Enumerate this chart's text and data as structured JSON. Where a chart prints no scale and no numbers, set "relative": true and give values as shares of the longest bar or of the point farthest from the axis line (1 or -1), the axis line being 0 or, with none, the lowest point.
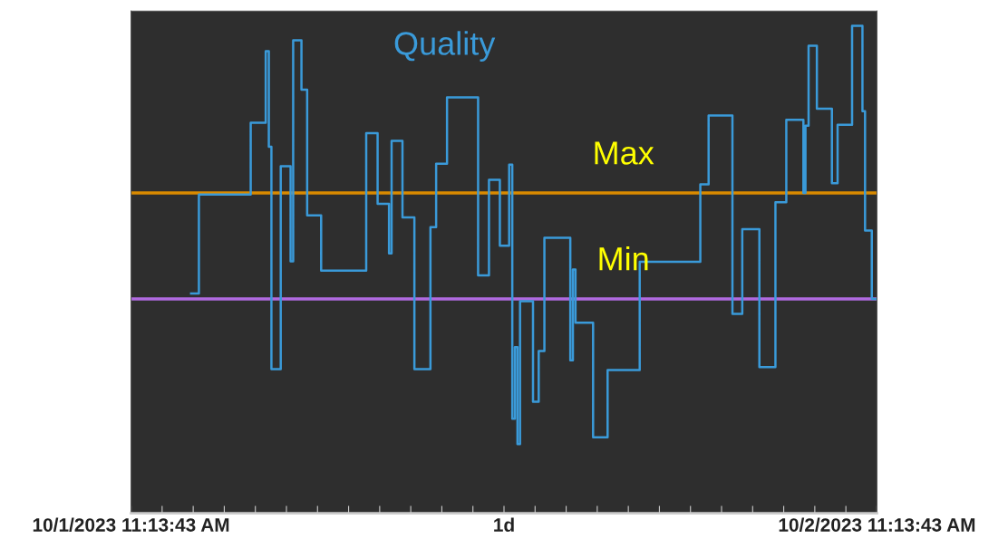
{
  "chart_data": {
    "type": "step",
    "relative": true,
    "x": [
      "2023-10-01T13:09",
      "2023-10-01T13:24",
      "2023-10-01T15:04",
      "2023-10-01T15:33",
      "2023-10-01T15:39",
      "2023-10-01T15:44",
      "2023-10-01T16:02",
      "2023-10-01T16:21",
      "2023-10-01T16:26",
      "2023-10-01T16:42",
      "2023-10-01T16:53",
      "2023-10-01T17:20",
      "2023-10-01T18:47",
      "2023-10-01T19:09",
      "2023-10-01T19:31",
      "2023-10-01T19:36",
      "2023-10-01T19:57",
      "2023-10-01T20:20",
      "2023-10-01T20:51",
      "2023-10-01T21:02",
      "2023-10-01T21:23",
      "2023-10-01T22:23",
      "2023-10-01T22:44",
      "2023-10-01T23:05",
      "2023-10-01T23:23",
      "2023-10-01T23:29",
      "2023-10-01T23:34",
      "2023-10-01T23:39",
      "2023-10-01T23:44",
      "2023-10-02T00:09",
      "2023-10-02T00:20",
      "2023-10-02T00:31",
      "2023-10-02T01:21",
      "2023-10-02T01:26",
      "2023-10-02T01:31",
      "2023-10-02T02:05",
      "2023-10-02T02:33",
      "2023-10-02T03:35",
      "2023-10-02T05:32",
      "2023-10-02T05:48",
      "2023-10-02T06:34",
      "2023-10-02T06:53",
      "2023-10-02T07:26",
      "2023-10-02T07:57",
      "2023-10-02T08:18",
      "2023-10-02T08:51",
      "2023-10-02T08:55",
      "2023-10-02T09:01",
      "2023-10-02T09:17",
      "2023-10-02T09:46",
      "2023-10-02T09:57",
      "2023-10-02T10:25",
      "2023-10-02T10:45",
      "2023-10-02T10:50",
      "2023-10-02T11:03",
      "2023-10-02T11:13"
    ],
    "series": [
      {
        "name": "Quality",
        "color": "#3a9ad9",
        "values": [
          0.451,
          0.654,
          0.801,
          0.948,
          0.752,
          0.296,
          0.712,
          0.517,
          0.97,
          0.869,
          0.611,
          0.498,
          0.78,
          0.635,
          0.533,
          0.764,
          0.607,
          0.296,
          0.587,
          0.717,
          0.853,
          0.488,
          0.684,
          0.549,
          0.715,
          0.194,
          0.341,
          0.142,
          0.435,
          0.229,
          0.333,
          0.565,
          0.314,
          0.5,
          0.391,
          0.156,
          0.294,
          0.516,
          0.675,
          0.816,
          0.409,
          0.583,
          0.3,
          0.638,
          0.807,
          0.657,
          0.795,
          0.959,
          0.83,
          0.677,
          0.797,
          1.0,
          0.825,
          0.58,
          0.44,
          0.44
        ]
      }
    ],
    "xlim": [
      "2023-10-01T11:13",
      "2023-10-02T11:13"
    ],
    "xticks": [
      {
        "value": "2023-10-01T11:13",
        "label": "10/1/2023 11:13:43 AM"
      },
      {
        "value": "2023-10-01T12:13",
        "label": null
      },
      {
        "value": "2023-10-01T13:13",
        "label": null
      },
      {
        "value": "2023-10-01T14:13",
        "label": null
      },
      {
        "value": "2023-10-01T15:13",
        "label": null
      },
      {
        "value": "2023-10-01T16:13",
        "label": null
      },
      {
        "value": "2023-10-01T17:13",
        "label": null
      },
      {
        "value": "2023-10-01T18:13",
        "label": null
      },
      {
        "value": "2023-10-01T19:13",
        "label": null
      },
      {
        "value": "2023-10-01T20:13",
        "label": null
      },
      {
        "value": "2023-10-01T21:13",
        "label": null
      },
      {
        "value": "2023-10-01T22:13",
        "label": null
      },
      {
        "value": "2023-10-01T23:13",
        "label": "1d"
      },
      {
        "value": "2023-10-02T00:13",
        "label": null
      },
      {
        "value": "2023-10-02T01:13",
        "label": null
      },
      {
        "value": "2023-10-02T02:13",
        "label": null
      },
      {
        "value": "2023-10-02T03:13",
        "label": null
      },
      {
        "value": "2023-10-02T04:13",
        "label": null
      },
      {
        "value": "2023-10-02T05:13",
        "label": null
      },
      {
        "value": "2023-10-02T06:13",
        "label": null
      },
      {
        "value": "2023-10-02T07:13",
        "label": null
      },
      {
        "value": "2023-10-02T08:13",
        "label": null
      },
      {
        "value": "2023-10-02T09:13",
        "label": null
      },
      {
        "value": "2023-10-02T10:13",
        "label": null
      },
      {
        "value": "2023-10-02T11:13",
        "label": "10/2/2023 11:13:43 AM"
      }
    ],
    "ref_lines": [
      {
        "axis": "y",
        "value": 0.657,
        "label": "Max",
        "color": "#d98a00"
      },
      {
        "axis": "y",
        "value": 0.44,
        "label": "Min",
        "color": "#b06ae0"
      }
    ],
    "grid": false,
    "legend": false
  }
}
